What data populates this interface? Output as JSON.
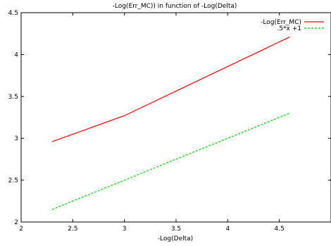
{
  "chart_data": {
    "type": "line",
    "title": "-Log(Err_MC)) in function of -Log(Delta)",
    "xlabel": "-Log(Delta)",
    "ylabel": "",
    "xlim": [
      2,
      5
    ],
    "ylim": [
      2,
      4.5
    ],
    "xticks": [
      "2",
      "2.5",
      "3",
      "3.5",
      "4",
      "4.5"
    ],
    "yticks": [
      "2",
      "2.5",
      "3",
      "3.5",
      "4",
      "4.5"
    ],
    "grid": false,
    "legend_position": "top-right",
    "series": [
      {
        "name": "-Log(Err_MC)",
        "color": "#ff0000",
        "dash": "solid",
        "x": [
          2.3,
          3.0,
          4.6
        ],
        "y": [
          2.96,
          3.27,
          4.21
        ]
      },
      {
        "name": ".5*x +1",
        "color": "#00cc00",
        "dash": "dashed",
        "x": [
          2.3,
          4.6
        ],
        "y": [
          2.15,
          3.3
        ]
      }
    ]
  }
}
